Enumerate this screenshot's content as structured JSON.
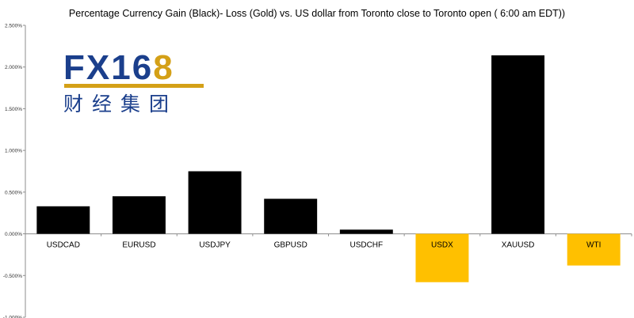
{
  "chart_data": {
    "type": "bar",
    "title": "Percentage Currency  Gain (Black)- Loss (Gold)  vs. US dollar  from Toronto close to Toronto  open ( 6:00 am EDT))",
    "categories": [
      "USDCAD",
      "EURUSD",
      "USDJPY",
      "GBPUSD",
      "USDCHF",
      "USDX",
      "XAUUSD",
      "WTI"
    ],
    "values": [
      0.33,
      0.45,
      0.75,
      0.42,
      0.05,
      -0.58,
      2.14,
      -0.38
    ],
    "bar_colors": [
      "#000000",
      "#000000",
      "#000000",
      "#000000",
      "#000000",
      "#FFC000",
      "#000000",
      "#FFC000"
    ],
    "yticks": [
      "2.500%",
      "2.000%",
      "1.500%",
      "1.000%",
      "0.500%",
      "0.000%",
      "-0.500%",
      "-1.000%"
    ],
    "ylim": [
      -1.0,
      2.5
    ],
    "grid": false,
    "legend": "none"
  },
  "logo": {
    "fx": "FX",
    "num": "16",
    "eight": "8",
    "chinese": "财经集团",
    "colors": {
      "blue": "#1b3f8c",
      "gold": "#d4a017"
    }
  }
}
